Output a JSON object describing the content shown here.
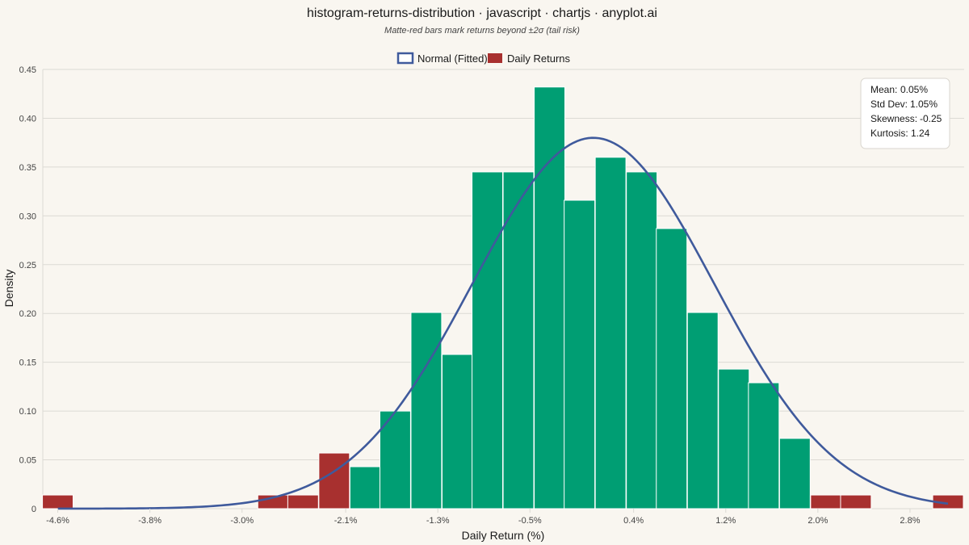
{
  "colors": {
    "background": "#F9F6F0",
    "normal_bar": "#009E73",
    "tail_bar": "#A8302F",
    "curve": "#3F5A9C",
    "grid": "#DCDAD4"
  },
  "chart_data": {
    "type": "bar",
    "title": "histogram-returns-distribution · javascript · chartjs · anyplot.ai",
    "subtitle": "Matte-red bars mark returns beyond ±2σ (tail risk)",
    "xlabel": "Daily Return (%)",
    "ylabel": "Density",
    "ylim": [
      0,
      0.45
    ],
    "xlim": [
      -4.73,
      3.27
    ],
    "bin_width": 0.266,
    "y_ticks": [
      "0",
      "0.05",
      "0.10",
      "0.15",
      "0.20",
      "0.25",
      "0.30",
      "0.35",
      "0.40",
      "0.45"
    ],
    "x_ticks": [
      {
        "value": -4.6,
        "label": "-4.6%"
      },
      {
        "value": -3.8,
        "label": "-3.8%"
      },
      {
        "value": -3.0,
        "label": "-3.0%"
      },
      {
        "value": -2.1,
        "label": "-2.1%"
      },
      {
        "value": -1.3,
        "label": "-1.3%"
      },
      {
        "value": -0.5,
        "label": "-0.5%"
      },
      {
        "value": 0.4,
        "label": "0.4%"
      },
      {
        "value": 1.2,
        "label": "1.2%"
      },
      {
        "value": 2.0,
        "label": "2.0%"
      },
      {
        "value": 2.8,
        "label": "2.8%"
      }
    ],
    "legend_position": "top-center",
    "grid": true,
    "series": [
      {
        "name": "Normal (Fitted)",
        "type": "line",
        "mean": 0.05,
        "std": 1.05
      },
      {
        "name": "Daily Returns",
        "type": "bar"
      }
    ],
    "bins": [
      {
        "x": -4.6,
        "density": 0.014,
        "tail": true
      },
      {
        "x": -4.33,
        "density": 0,
        "tail": false
      },
      {
        "x": -4.07,
        "density": 0,
        "tail": false
      },
      {
        "x": -3.8,
        "density": 0,
        "tail": false
      },
      {
        "x": -3.53,
        "density": 0,
        "tail": false
      },
      {
        "x": -3.27,
        "density": 0,
        "tail": false
      },
      {
        "x": -3.0,
        "density": 0,
        "tail": false
      },
      {
        "x": -2.73,
        "density": 0.014,
        "tail": true
      },
      {
        "x": -2.47,
        "density": 0.014,
        "tail": true
      },
      {
        "x": -2.2,
        "density": 0.057,
        "tail": true
      },
      {
        "x": -1.93,
        "density": 0.043,
        "tail": false
      },
      {
        "x": -1.67,
        "density": 0.1,
        "tail": false
      },
      {
        "x": -1.4,
        "density": 0.201,
        "tail": false
      },
      {
        "x": -1.13,
        "density": 0.158,
        "tail": false
      },
      {
        "x": -0.87,
        "density": 0.345,
        "tail": false
      },
      {
        "x": -0.6,
        "density": 0.345,
        "tail": false
      },
      {
        "x": -0.33,
        "density": 0.432,
        "tail": false
      },
      {
        "x": -0.07,
        "density": 0.316,
        "tail": false
      },
      {
        "x": 0.2,
        "density": 0.36,
        "tail": false
      },
      {
        "x": 0.47,
        "density": 0.345,
        "tail": false
      },
      {
        "x": 0.73,
        "density": 0.287,
        "tail": false
      },
      {
        "x": 1.0,
        "density": 0.201,
        "tail": false
      },
      {
        "x": 1.27,
        "density": 0.143,
        "tail": false
      },
      {
        "x": 1.53,
        "density": 0.129,
        "tail": false
      },
      {
        "x": 1.8,
        "density": 0.072,
        "tail": false
      },
      {
        "x": 2.07,
        "density": 0.014,
        "tail": true
      },
      {
        "x": 2.33,
        "density": 0.014,
        "tail": true
      },
      {
        "x": 2.6,
        "density": 0,
        "tail": false
      },
      {
        "x": 2.87,
        "density": 0,
        "tail": false
      },
      {
        "x": 3.13,
        "density": 0.014,
        "tail": true
      }
    ],
    "stats": [
      {
        "label": "Mean:",
        "value": "0.05%"
      },
      {
        "label": "Std Dev:",
        "value": "1.05%"
      },
      {
        "label": "Skewness:",
        "value": "-0.25"
      },
      {
        "label": "Kurtosis:",
        "value": "1.24"
      }
    ]
  }
}
